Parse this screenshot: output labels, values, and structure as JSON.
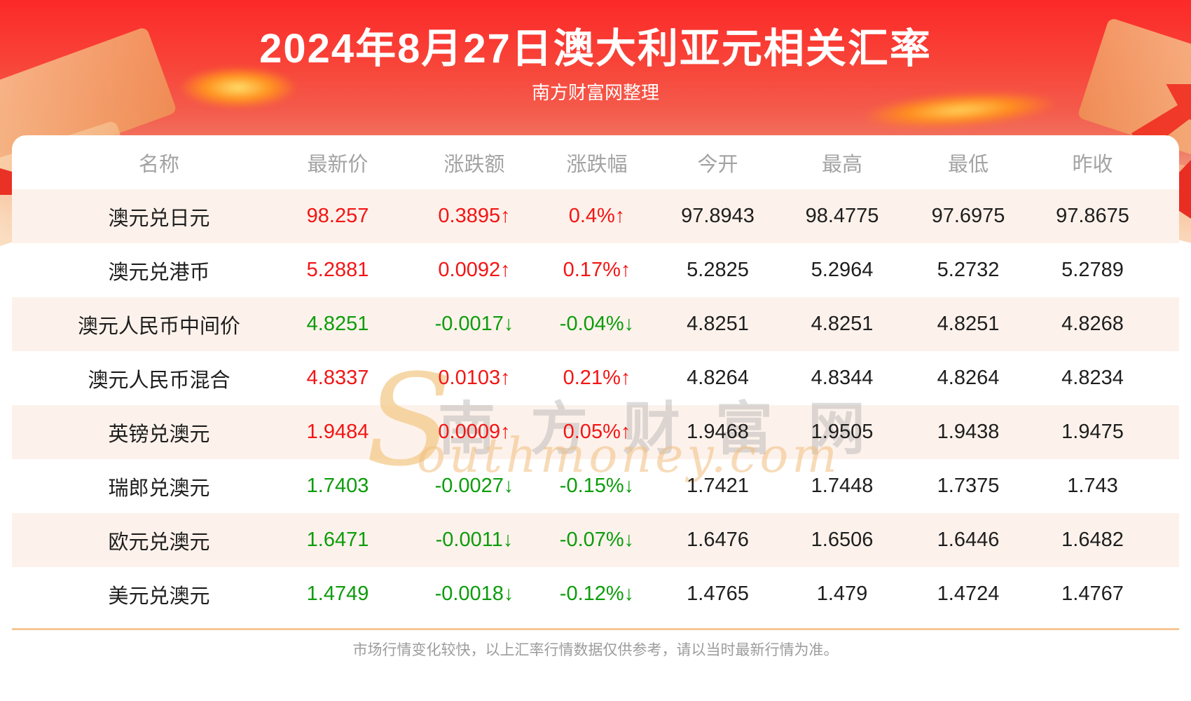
{
  "banner": {
    "title": "2024年8月27日澳大利亚元相关汇率",
    "subtitle": "南方财富网整理"
  },
  "table": {
    "columns": [
      "名称",
      "最新价",
      "涨跌额",
      "涨跌幅",
      "今开",
      "最高",
      "最低",
      "昨收"
    ],
    "rows": [
      {
        "name": "澳元兑日元",
        "latest": "98.257",
        "change": "0.3895",
        "pct": "0.4%",
        "trend": "up",
        "open": "97.8943",
        "high": "98.4775",
        "low": "97.6975",
        "prev_close": "97.8675"
      },
      {
        "name": "澳元兑港币",
        "latest": "5.2881",
        "change": "0.0092",
        "pct": "0.17%",
        "trend": "up",
        "open": "5.2825",
        "high": "5.2964",
        "low": "5.2732",
        "prev_close": "5.2789"
      },
      {
        "name": "澳元人民币中间价",
        "latest": "4.8251",
        "change": "-0.0017",
        "pct": "-0.04%",
        "trend": "down",
        "open": "4.8251",
        "high": "4.8251",
        "low": "4.8251",
        "prev_close": "4.8268"
      },
      {
        "name": "澳元人民币混合",
        "latest": "4.8337",
        "change": "0.0103",
        "pct": "0.21%",
        "trend": "up",
        "open": "4.8264",
        "high": "4.8344",
        "low": "4.8264",
        "prev_close": "4.8234"
      },
      {
        "name": "英镑兑澳元",
        "latest": "1.9484",
        "change": "0.0009",
        "pct": "0.05%",
        "trend": "up",
        "open": "1.9468",
        "high": "1.9505",
        "low": "1.9438",
        "prev_close": "1.9475"
      },
      {
        "name": "瑞郎兑澳元",
        "latest": "1.7403",
        "change": "-0.0027",
        "pct": "-0.15%",
        "trend": "down",
        "open": "1.7421",
        "high": "1.7448",
        "low": "1.7375",
        "prev_close": "1.743"
      },
      {
        "name": "欧元兑澳元",
        "latest": "1.6471",
        "change": "-0.0011",
        "pct": "-0.07%",
        "trend": "down",
        "open": "1.6476",
        "high": "1.6506",
        "low": "1.6446",
        "prev_close": "1.6482"
      },
      {
        "name": "美元兑澳元",
        "latest": "1.4749",
        "change": "-0.0018",
        "pct": "-0.12%",
        "trend": "down",
        "open": "1.4765",
        "high": "1.479",
        "low": "1.4724",
        "prev_close": "1.4767"
      }
    ],
    "up_arrow": "↑",
    "down_arrow": "↓"
  },
  "watermark": {
    "initial": "S",
    "cn": "南方财富网",
    "en": "outhmoney.com"
  },
  "footer": {
    "note": "市场行情变化较快，以上汇率行情数据仅供参考，请以当时最新行情为准。"
  },
  "colors": {
    "up": "#f31515",
    "down": "#0c9c0c",
    "banner_red": "#fc2929",
    "row_alt": "#fdf2eb",
    "divider": "#f6c793",
    "header_text": "#a3a3a3"
  }
}
